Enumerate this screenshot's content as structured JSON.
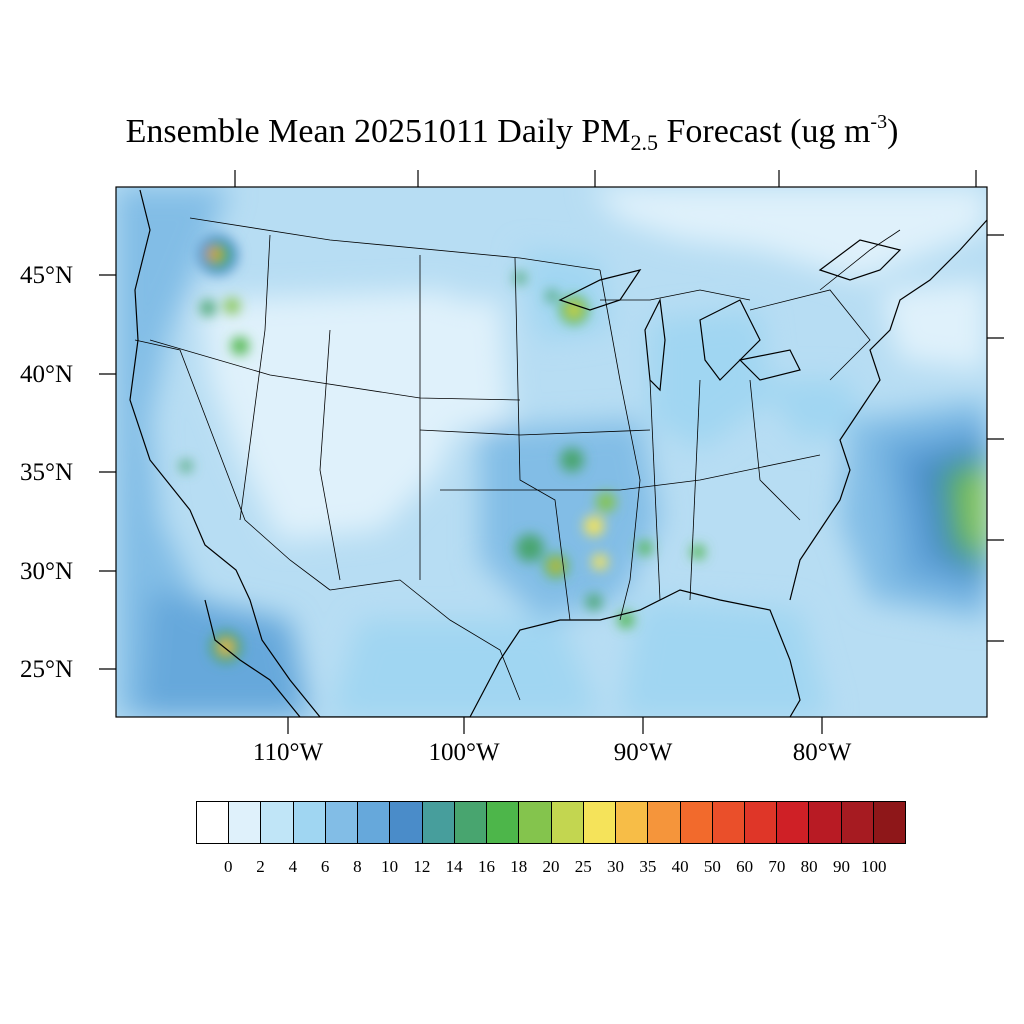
{
  "title": {
    "prefix": "Ensemble Mean 20251011 Daily PM",
    "subscript": "2.5",
    "middle": " Forecast (ug m",
    "superscript": "-3",
    "suffix": ")"
  },
  "latitude_labels": [
    "45°N",
    "40°N",
    "35°N",
    "30°N",
    "25°N"
  ],
  "longitude_labels": [
    "110°W",
    "100°W",
    "90°W",
    "80°W"
  ],
  "colorbar": {
    "labels": [
      "0",
      "2",
      "4",
      "6",
      "8",
      "10",
      "12",
      "14",
      "16",
      "18",
      "20",
      "25",
      "30",
      "35",
      "40",
      "50",
      "60",
      "70",
      "80",
      "90",
      "100"
    ],
    "colors": [
      "#ffffff",
      "#dff1fb",
      "#c0e5f7",
      "#a0d6f2",
      "#82bde6",
      "#66a8db",
      "#4a8cc9",
      "#479e9c",
      "#48a56f",
      "#4db64a",
      "#84c44d",
      "#c3d650",
      "#f5e35a",
      "#f7bd47",
      "#f5953b",
      "#f26a2c",
      "#ea4f2a",
      "#df3628",
      "#cf2026",
      "#b81b24",
      "#a61b21",
      "#8e1719"
    ]
  },
  "map": {
    "background_color": "#b7ddf3",
    "hotspots": [
      {
        "name": "washington-fire",
        "value": 35
      },
      {
        "name": "southern-oregon-idaho",
        "value": 20
      },
      {
        "name": "minnesota-wisconsin",
        "value": 30
      },
      {
        "name": "oklahoma-arkansas",
        "value": 25
      },
      {
        "name": "louisiana-mississippi",
        "value": 30
      },
      {
        "name": "baja-california",
        "value": 35
      },
      {
        "name": "atlantic-offshore",
        "value": 20
      }
    ]
  }
}
